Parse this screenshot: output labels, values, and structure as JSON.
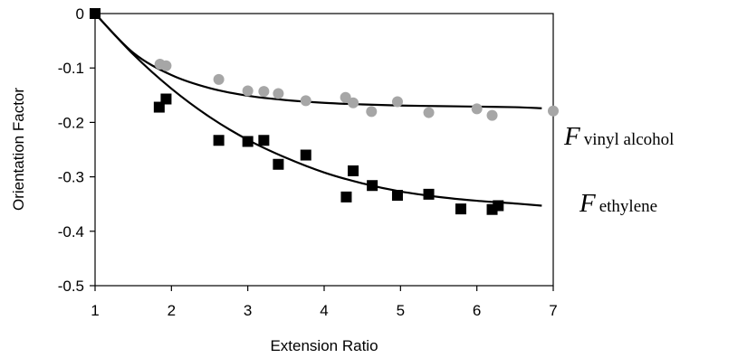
{
  "chart_data": {
    "type": "scatter",
    "title": "",
    "xlabel": "Extension Ratio",
    "ylabel": "Orientation Factor",
    "xlim": [
      1,
      7
    ],
    "ylim": [
      -0.5,
      0
    ],
    "xticks": [
      "1",
      "2",
      "3",
      "4",
      "5",
      "6",
      "7"
    ],
    "yticks": [
      "0",
      "-0.1",
      "-0.2",
      "-0.3",
      "-0.4",
      "-0.5"
    ],
    "grid": false,
    "legend": "inline-right",
    "series": [
      {
        "name": "F vinyl alcohol",
        "label_main": "F",
        "label_sub": "vinyl alcohol",
        "marker": "circle",
        "color": "#a6a6a6",
        "x": [
          1.0,
          1.85,
          1.93,
          2.62,
          3.0,
          3.21,
          3.4,
          3.76,
          4.28,
          4.38,
          4.62,
          4.96,
          5.37,
          6.0,
          6.2,
          7.0
        ],
        "y": [
          0.0,
          -0.093,
          -0.096,
          -0.121,
          -0.142,
          -0.143,
          -0.147,
          -0.16,
          -0.154,
          -0.164,
          -0.18,
          -0.162,
          -0.182,
          -0.175,
          -0.187,
          -0.179
        ],
        "fit_x": [
          1.0,
          1.5,
          2.0,
          2.5,
          3.0,
          3.5,
          4.0,
          4.5,
          5.0,
          5.5,
          6.0,
          6.5,
          6.85
        ],
        "fit_y": [
          0.0,
          -0.072,
          -0.113,
          -0.137,
          -0.151,
          -0.159,
          -0.164,
          -0.167,
          -0.169,
          -0.17,
          -0.171,
          -0.172,
          -0.174
        ]
      },
      {
        "name": "F ethylene",
        "label_main": "F",
        "label_sub": "ethylene",
        "marker": "square",
        "color": "#000000",
        "x": [
          1.0,
          1.84,
          1.93,
          2.62,
          3.0,
          3.21,
          3.4,
          3.76,
          4.29,
          4.38,
          4.63,
          4.96,
          5.37,
          5.79,
          6.2,
          6.28
        ],
        "y": [
          0.0,
          -0.172,
          -0.157,
          -0.233,
          -0.235,
          -0.233,
          -0.277,
          -0.26,
          -0.337,
          -0.289,
          -0.316,
          -0.334,
          -0.332,
          -0.359,
          -0.36,
          -0.353
        ],
        "fit_x": [
          1.0,
          1.5,
          2.0,
          2.5,
          3.0,
          3.5,
          4.0,
          4.5,
          5.0,
          5.5,
          6.0,
          6.5,
          6.85
        ],
        "fit_y": [
          0.0,
          -0.075,
          -0.138,
          -0.19,
          -0.232,
          -0.265,
          -0.292,
          -0.312,
          -0.327,
          -0.337,
          -0.344,
          -0.349,
          -0.353
        ]
      }
    ]
  }
}
